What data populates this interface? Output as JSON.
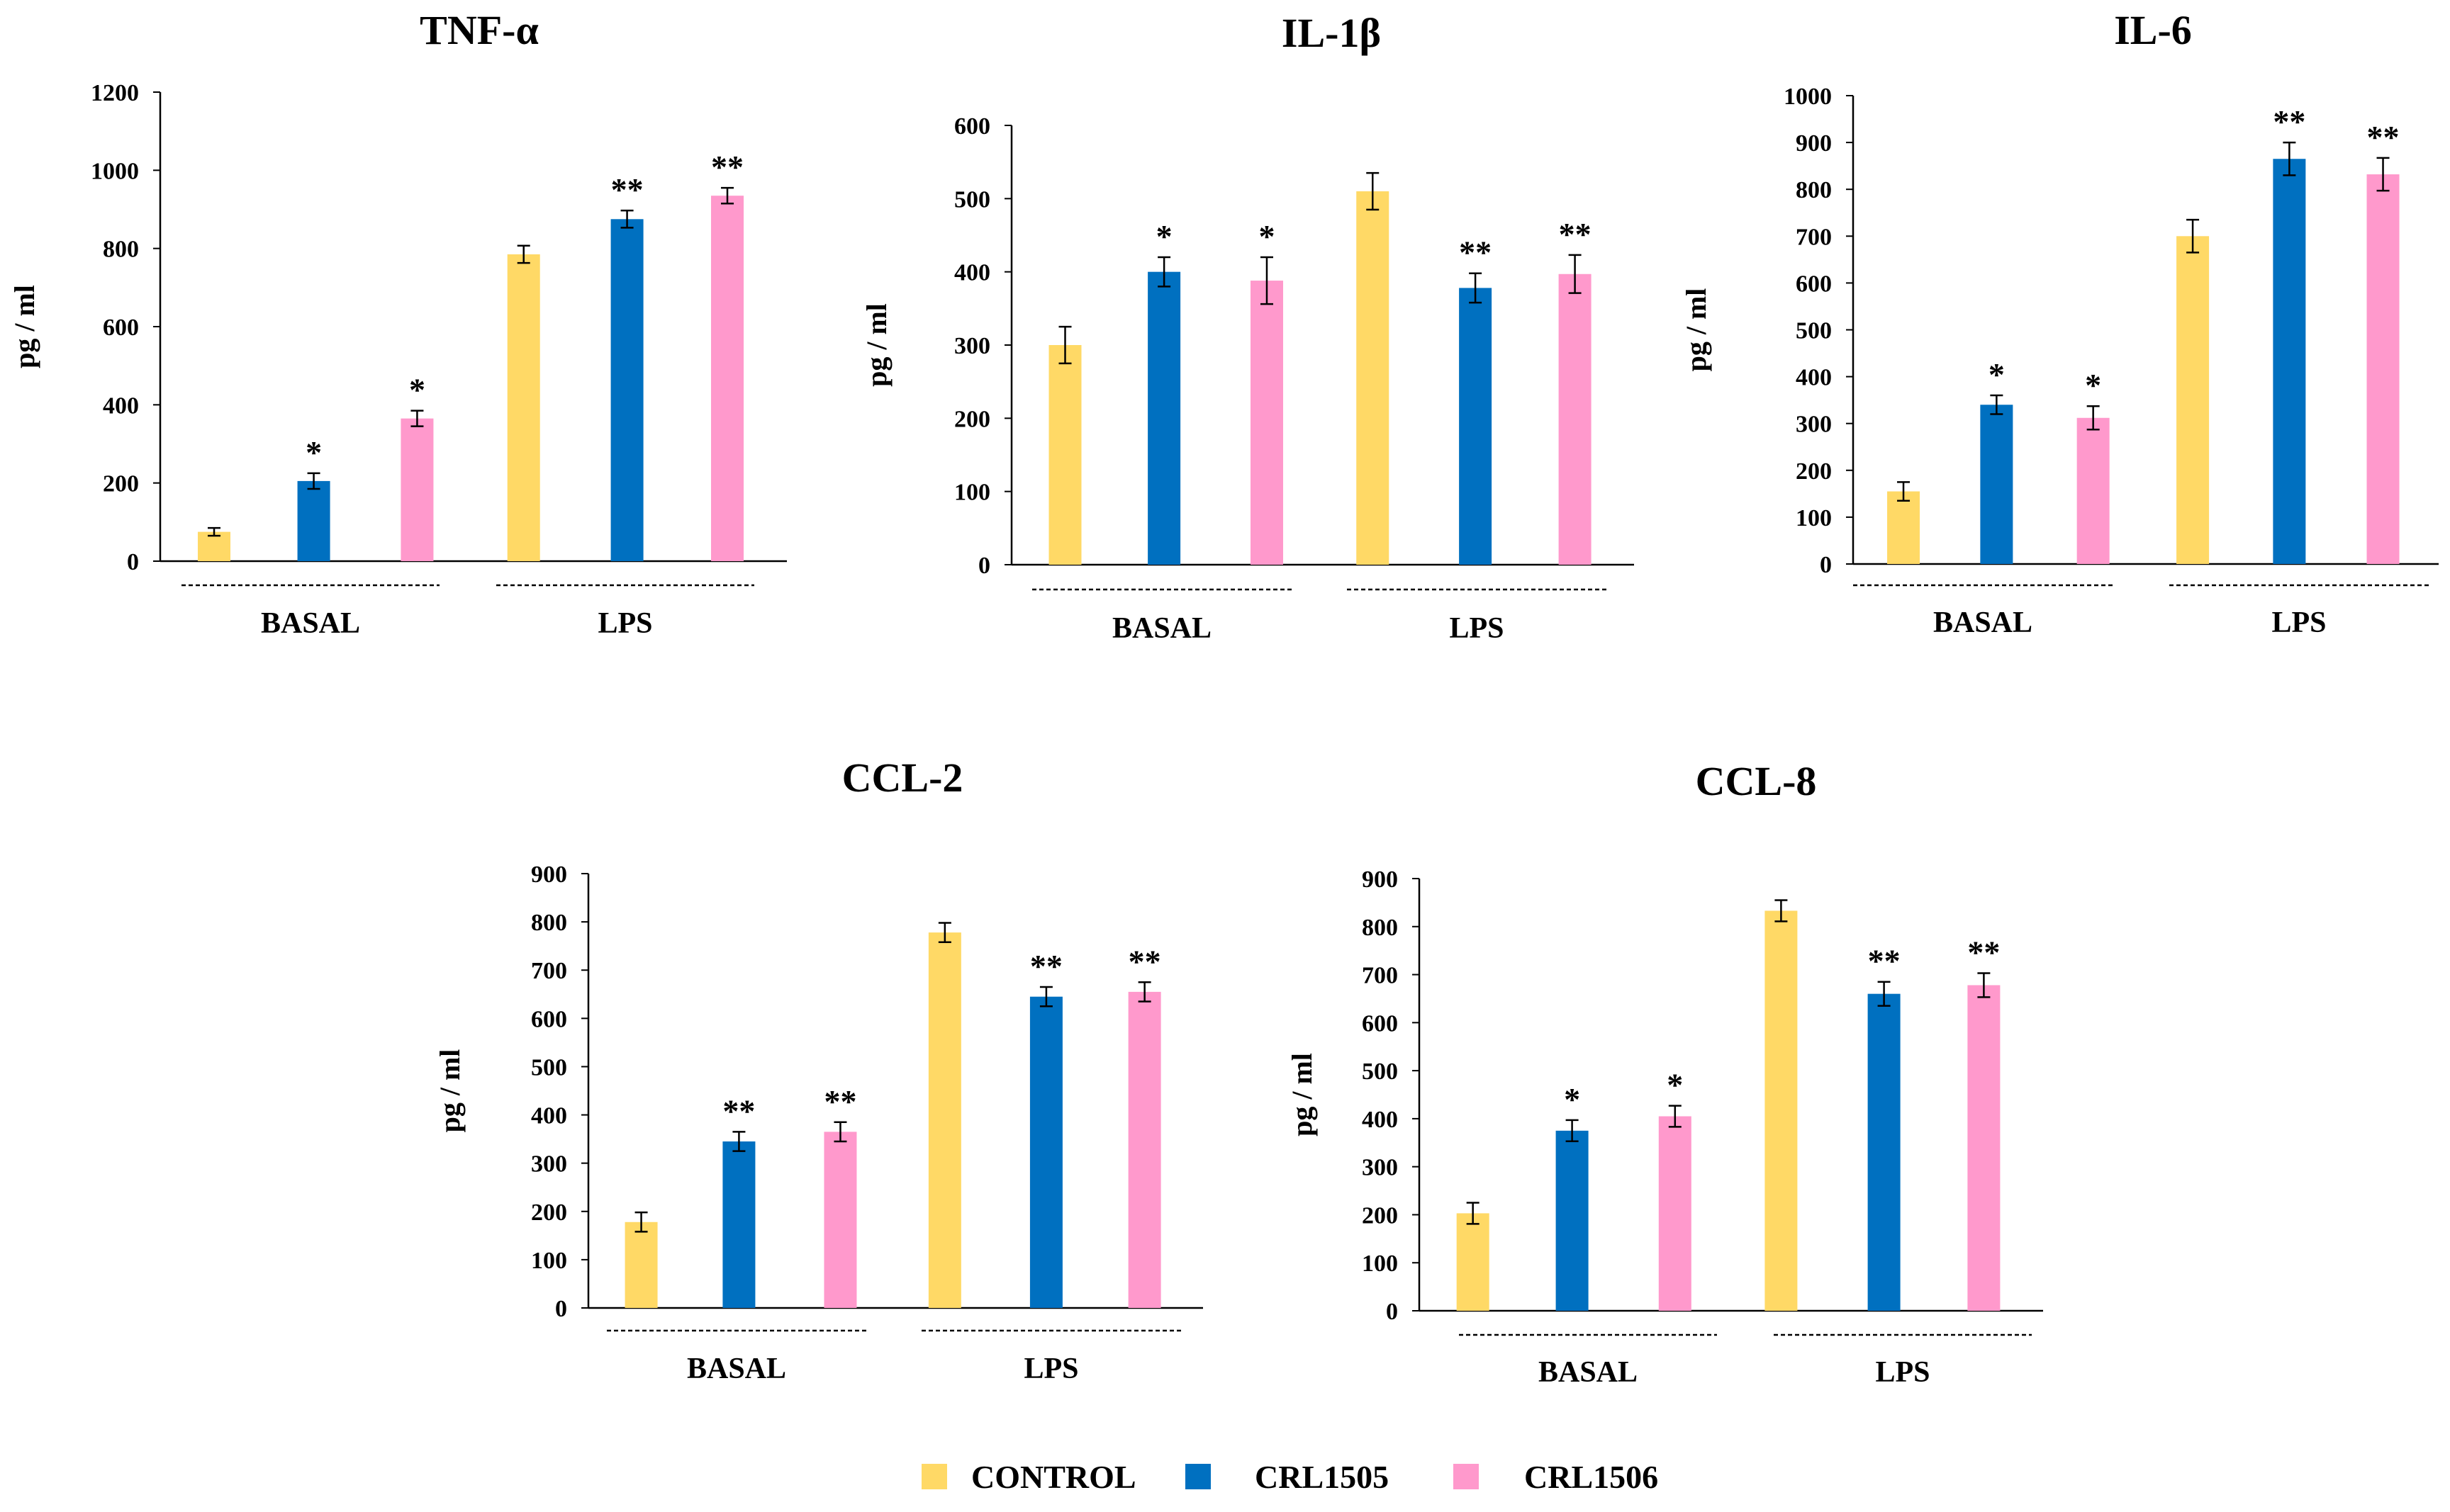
{
  "colors": {
    "control": "#FFD966",
    "crl1505": "#0070C0",
    "crl1506": "#FF99CC",
    "axis": "#000000"
  },
  "legend": [
    {
      "label": "CONTROL",
      "color_key": "control"
    },
    {
      "label": "CRL1505",
      "color_key": "crl1505"
    },
    {
      "label": "CRL1506",
      "color_key": "crl1506"
    }
  ],
  "chart_data": [
    {
      "type": "bar",
      "title": "TNF-α",
      "ylabel": "pg / ml",
      "ylim": [
        0,
        1200
      ],
      "yticks": [
        "0",
        "200",
        "400",
        "600",
        "800",
        "1000",
        "1200"
      ],
      "groups": [
        "BASAL",
        "LPS"
      ],
      "series": [
        {
          "name": "CONTROL",
          "values": [
            75,
            785
          ],
          "errors": [
            10,
            22
          ],
          "sig": [
            "",
            ""
          ]
        },
        {
          "name": "CRL1505",
          "values": [
            205,
            875
          ],
          "errors": [
            20,
            22
          ],
          "sig": [
            "*",
            "**"
          ]
        },
        {
          "name": "CRL1506",
          "values": [
            365,
            935
          ],
          "errors": [
            20,
            20
          ],
          "sig": [
            "*",
            "**"
          ]
        }
      ]
    },
    {
      "type": "bar",
      "title": "IL-1β",
      "ylabel": "pg / ml",
      "ylim": [
        0,
        600
      ],
      "yticks": [
        "0",
        "100",
        "200",
        "300",
        "400",
        "500",
        "600"
      ],
      "groups": [
        "BASAL",
        "LPS"
      ],
      "series": [
        {
          "name": "CONTROL",
          "values": [
            300,
            510
          ],
          "errors": [
            25,
            25
          ],
          "sig": [
            "",
            ""
          ]
        },
        {
          "name": "CRL1505",
          "values": [
            400,
            378
          ],
          "errors": [
            20,
            20
          ],
          "sig": [
            "*",
            "**"
          ]
        },
        {
          "name": "CRL1506",
          "values": [
            388,
            397
          ],
          "errors": [
            32,
            26
          ],
          "sig": [
            "*",
            "**"
          ]
        }
      ]
    },
    {
      "type": "bar",
      "title": "IL-6",
      "ylabel": "pg / ml",
      "ylim": [
        0,
        1000
      ],
      "yticks": [
        "0",
        "100",
        "200",
        "300",
        "400",
        "500",
        "600",
        "700",
        "800",
        "900",
        "1000"
      ],
      "groups": [
        "BASAL",
        "LPS"
      ],
      "series": [
        {
          "name": "CONTROL",
          "values": [
            155,
            700
          ],
          "errors": [
            20,
            35
          ],
          "sig": [
            "",
            ""
          ]
        },
        {
          "name": "CRL1505",
          "values": [
            340,
            865
          ],
          "errors": [
            20,
            35
          ],
          "sig": [
            "*",
            "**"
          ]
        },
        {
          "name": "CRL1506",
          "values": [
            312,
            832
          ],
          "errors": [
            25,
            35
          ],
          "sig": [
            "*",
            "**"
          ]
        }
      ]
    },
    {
      "type": "bar",
      "title": "CCL-2",
      "ylabel": "pg / ml",
      "ylim": [
        0,
        900
      ],
      "yticks": [
        "0",
        "100",
        "200",
        "300",
        "400",
        "500",
        "600",
        "700",
        "800",
        "900"
      ],
      "groups": [
        "BASAL",
        "LPS"
      ],
      "series": [
        {
          "name": "CONTROL",
          "values": [
            178,
            778
          ],
          "errors": [
            20,
            20
          ],
          "sig": [
            "",
            ""
          ]
        },
        {
          "name": "CRL1505",
          "values": [
            345,
            645
          ],
          "errors": [
            20,
            20
          ],
          "sig": [
            "**",
            "**"
          ]
        },
        {
          "name": "CRL1506",
          "values": [
            365,
            655
          ],
          "errors": [
            20,
            20
          ],
          "sig": [
            "**",
            "**"
          ]
        }
      ]
    },
    {
      "type": "bar",
      "title": "CCL-8",
      "ylabel": "pg / ml",
      "ylim": [
        0,
        900
      ],
      "yticks": [
        "0",
        "100",
        "200",
        "300",
        "400",
        "500",
        "600",
        "700",
        "800",
        "900"
      ],
      "groups": [
        "BASAL",
        "LPS"
      ],
      "series": [
        {
          "name": "CONTROL",
          "values": [
            203,
            833
          ],
          "errors": [
            22,
            22
          ],
          "sig": [
            "",
            ""
          ]
        },
        {
          "name": "CRL1505",
          "values": [
            375,
            660
          ],
          "errors": [
            22,
            25
          ],
          "sig": [
            "*",
            "**"
          ]
        },
        {
          "name": "CRL1506",
          "values": [
            405,
            678
          ],
          "errors": [
            22,
            25
          ],
          "sig": [
            "*",
            "**"
          ]
        }
      ]
    }
  ]
}
